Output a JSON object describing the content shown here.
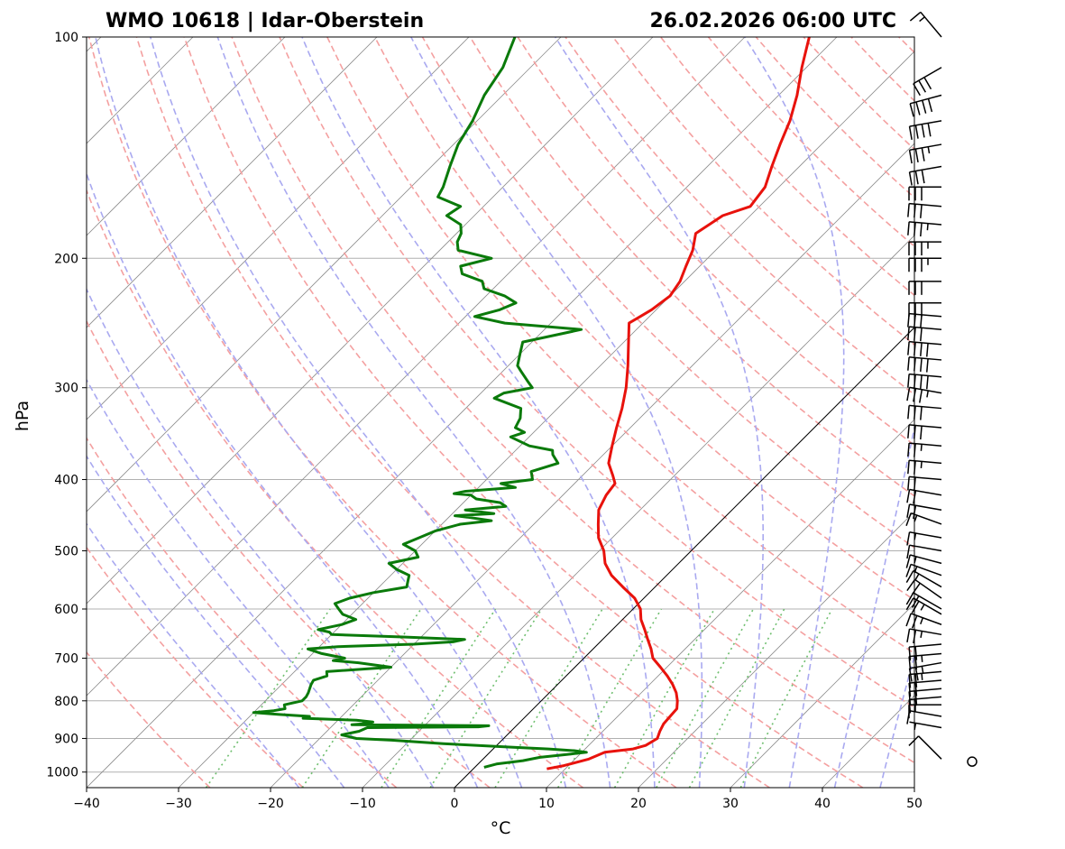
{
  "header": {
    "station": "WMO 10618 | Idar-Oberstein",
    "datetime": "26.02.2026 06:00 UTC"
  },
  "chart_data": {
    "type": "line",
    "diagram": "skew-t log-p",
    "xlabel": "°C",
    "ylabel": "hPa",
    "xlim": [
      -40,
      50
    ],
    "ylim": [
      1050,
      100
    ],
    "yscale": "log",
    "x_ticks": [
      -40,
      -30,
      -20,
      -10,
      0,
      10,
      20,
      30,
      40,
      50
    ],
    "x_tick_labels": [
      "−40",
      "−30",
      "−20",
      "−10",
      "0",
      "10",
      "20",
      "30",
      "40",
      "50"
    ],
    "y_ticks": [
      100,
      200,
      300,
      400,
      500,
      600,
      700,
      800,
      900,
      1000
    ],
    "y_tick_labels": [
      "100",
      "200",
      "300",
      "400",
      "500",
      "600",
      "700",
      "800",
      "900",
      "1000"
    ],
    "grid": true,
    "colors": {
      "temperature": "#e8120c",
      "dewpoint": "#0a7a0a",
      "dry_adiabats": "#f4a0a0",
      "moist_adiabats": "#a9a9f0",
      "mixing_ratio": "#6fbf6f",
      "isotherms": "#8c8c8c",
      "zero_isotherm": "#000000",
      "grid": "#b0b0b0"
    },
    "series": [
      {
        "key": "temperature",
        "pressure": [
          990,
          980,
          960,
          940,
          930,
          920,
          900,
          880,
          860,
          840,
          820,
          800,
          780,
          760,
          740,
          720,
          700,
          680,
          660,
          640,
          620,
          600,
          580,
          560,
          540,
          520,
          500,
          480,
          460,
          440,
          420,
          405,
          395,
          380,
          360,
          340,
          320,
          300,
          280,
          260,
          245,
          240,
          235,
          225,
          215,
          205,
          195,
          185,
          180,
          175,
          170,
          160,
          150,
          140,
          130,
          120,
          110,
          100
        ],
        "values": [
          8.0,
          9.5,
          11.5,
          12.5,
          15.2,
          16.2,
          16.7,
          16.2,
          15.8,
          15.7,
          15.6,
          14.8,
          13.8,
          12.5,
          11.0,
          9.3,
          7.5,
          6.3,
          4.9,
          3.5,
          2.0,
          0.8,
          -1.0,
          -3.5,
          -6.0,
          -8.0,
          -9.5,
          -11.5,
          -13.0,
          -14.5,
          -15.3,
          -15.6,
          -16.7,
          -18.5,
          -20.0,
          -21.5,
          -23.0,
          -24.8,
          -27.0,
          -29.5,
          -31.5,
          -31.0,
          -30.5,
          -30.0,
          -30.5,
          -31.5,
          -32.5,
          -34.0,
          -33.5,
          -33.0,
          -31.0,
          -31.5,
          -33.0,
          -34.5,
          -36.0,
          -38.0,
          -40.5,
          -43.0
        ]
      },
      {
        "key": "dewpoint",
        "pressure": [
          985,
          975,
          965,
          955,
          945,
          940,
          935,
          930,
          925,
          915,
          905,
          900,
          890,
          880,
          870,
          868,
          865,
          862,
          860,
          855,
          850,
          845,
          840,
          835,
          830,
          825,
          820,
          810,
          800,
          790,
          780,
          770,
          760,
          750,
          740,
          730,
          720,
          710,
          705,
          700,
          690,
          680,
          675,
          670,
          665,
          660,
          655,
          650,
          645,
          640,
          630,
          620,
          610,
          600,
          590,
          580,
          570,
          560,
          550,
          540,
          530,
          520,
          510,
          500,
          490,
          480,
          470,
          460,
          455,
          450,
          448,
          445,
          440,
          435,
          430,
          425,
          420,
          418,
          415,
          410,
          405,
          400,
          395,
          390,
          380,
          370,
          365,
          360,
          350,
          345,
          340,
          330,
          320,
          310,
          305,
          300,
          295,
          290,
          285,
          280,
          270,
          260,
          250,
          245,
          240,
          235,
          230,
          225,
          220,
          215,
          210,
          205,
          200,
          195,
          190,
          185,
          180,
          175,
          170,
          165,
          160,
          150,
          140,
          130,
          120,
          110,
          100
        ],
        "values": [
          1.0,
          2.0,
          4.5,
          6.0,
          9.0,
          10.5,
          9.0,
          6.0,
          2.0,
          -6.0,
          -12.0,
          -16.0,
          -18.0,
          -16.5,
          -16.0,
          -4.0,
          -3.0,
          -18.0,
          -17.0,
          -16.0,
          -18.0,
          -24.0,
          -23.5,
          -27.0,
          -30.0,
          -28.0,
          -27.0,
          -27.5,
          -26.0,
          -26.0,
          -26.2,
          -26.5,
          -26.8,
          -27.0,
          -26.0,
          -26.5,
          -20.0,
          -24.0,
          -27.0,
          -26.0,
          -29.0,
          -31.0,
          -28.0,
          -20.0,
          -16.0,
          -15.0,
          -22.0,
          -30.0,
          -30.5,
          -32.0,
          -30.0,
          -29.0,
          -31.0,
          -32.0,
          -33.0,
          -32.0,
          -30.0,
          -27.0,
          -27.5,
          -28.0,
          -30.0,
          -31.5,
          -29.0,
          -30.0,
          -32.0,
          -31.0,
          -30.0,
          -28.0,
          -25.0,
          -28.0,
          -29.5,
          -25.5,
          -29.0,
          -25.0,
          -26.0,
          -29.0,
          -30.0,
          -32.0,
          -31.0,
          -26.0,
          -28.0,
          -25.0,
          -25.5,
          -26.0,
          -24.0,
          -25.5,
          -26.0,
          -29.0,
          -32.0,
          -31.0,
          -32.5,
          -33.0,
          -34.0,
          -38.0,
          -37.5,
          -35.0,
          -36.0,
          -37.0,
          -38.0,
          -39.0,
          -40.0,
          -41.0,
          -36.0,
          -45.0,
          -49.0,
          -47.0,
          -46.0,
          -48.0,
          -51.0,
          -52.0,
          -55.0,
          -56.0,
          -53.5,
          -58.0,
          -59.0,
          -59.5,
          -60.5,
          -63.0,
          -62.5,
          -66.0,
          -66.5,
          -68.0,
          -69.5,
          -70.5,
          -72.0,
          -73.0,
          -75.0
        ]
      }
    ],
    "wind_barbs": {
      "pressure": [
        990,
        960,
        870,
        840,
        810,
        790,
        770,
        750,
        730,
        710,
        690,
        670,
        650,
        630,
        610,
        600,
        580,
        560,
        540,
        520,
        500,
        480,
        460,
        440,
        420,
        400,
        380,
        360,
        340,
        320,
        305,
        290,
        275,
        262,
        250,
        240,
        230,
        215,
        200,
        190,
        180,
        170,
        160,
        150,
        140,
        130,
        120,
        110,
        100
      ],
      "speed_kt": [
        0,
        10,
        5,
        10,
        15,
        15,
        20,
        20,
        25,
        25,
        25,
        20,
        25,
        25,
        25,
        20,
        20,
        15,
        15,
        15,
        10,
        15,
        15,
        20,
        20,
        20,
        25,
        25,
        30,
        30,
        35,
        40,
        40,
        40,
        30,
        30,
        30,
        30,
        35,
        35,
        35,
        30,
        30,
        30,
        35,
        40,
        40,
        30,
        15
      ],
      "direction_deg": [
        0,
        315,
        280,
        280,
        270,
        265,
        265,
        265,
        265,
        260,
        265,
        265,
        280,
        290,
        300,
        300,
        305,
        300,
        290,
        285,
        280,
        280,
        290,
        280,
        280,
        275,
        275,
        275,
        275,
        275,
        280,
        275,
        275,
        275,
        275,
        275,
        270,
        270,
        270,
        270,
        275,
        275,
        270,
        260,
        260,
        260,
        255,
        240,
        320
      ]
    }
  }
}
